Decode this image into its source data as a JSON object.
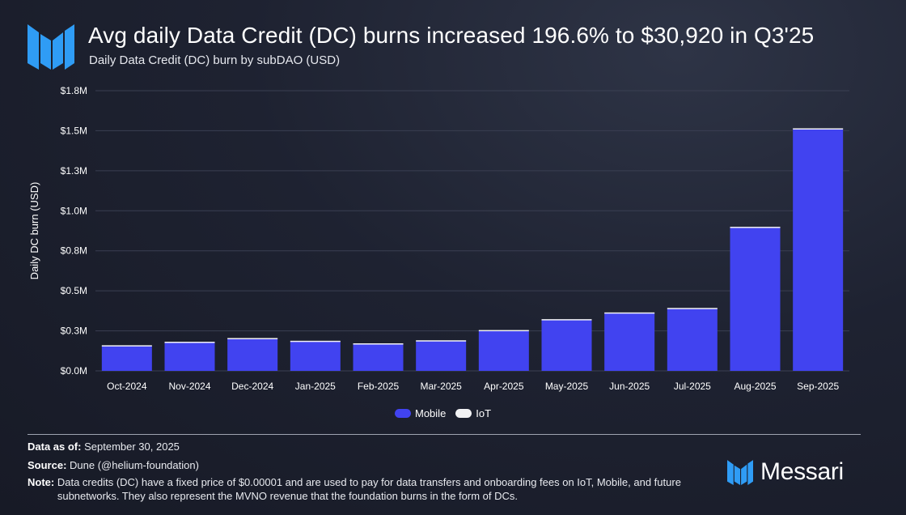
{
  "header": {
    "title": "Avg daily Data Credit (DC) burns increased 196.6% to $30,920 in Q3'25",
    "subtitle": "Daily Data Credit (DC) burn by subDAO (USD)"
  },
  "footer": {
    "data_as_of_label": "Data as of:",
    "data_as_of_value": "September 30, 2025",
    "source_label": "Source:",
    "source_value": "Dune (@helium-foundation)",
    "note_label": "Note:",
    "note_value": "Data credits (DC) have a fixed price of $0.00001 and are used to pay for data transfers and onboarding fees on IoT, Mobile, and future subnetworks. They also represent the MVNO revenue that the foundation burns in the form of DCs."
  },
  "brand": {
    "name": "Messari"
  },
  "legend": {
    "mobile": "Mobile",
    "iot": "IoT"
  },
  "colors": {
    "mobile": "#4143f0",
    "mobile_top": "#4a4cff",
    "iot": "#f2f2f4",
    "grid": "#3a3f52",
    "axis_text": "#ffffff"
  },
  "chart_data": {
    "type": "bar",
    "stacked": true,
    "title": "Daily Data Credit (DC) burn by subDAO (USD)",
    "xlabel": "",
    "ylabel": "Daily DC burn (USD)",
    "ylim": [
      0,
      1750000
    ],
    "yticks": [
      0,
      250000,
      500000,
      750000,
      1000000,
      1250000,
      1500000,
      1750000
    ],
    "ytick_labels": [
      "$0.0M",
      "$0.3M",
      "$0.5M",
      "$0.8M",
      "$1.0M",
      "$1.3M",
      "$1.5M",
      "$1.8M"
    ],
    "categories": [
      "Oct-2024",
      "Nov-2024",
      "Dec-2024",
      "Jan-2025",
      "Feb-2025",
      "Mar-2025",
      "Apr-2025",
      "May-2025",
      "Jun-2025",
      "Jul-2025",
      "Aug-2025",
      "Sep-2025"
    ],
    "series": [
      {
        "name": "Mobile",
        "values": [
          155000,
          177000,
          200000,
          183000,
          167000,
          186000,
          250000,
          318000,
          360000,
          388000,
          895000,
          1510000
        ]
      },
      {
        "name": "IoT",
        "values": [
          5000,
          5000,
          5000,
          5000,
          5000,
          5000,
          5000,
          5000,
          5000,
          5000,
          5000,
          5000
        ]
      }
    ],
    "legend_position": "bottom-center"
  }
}
